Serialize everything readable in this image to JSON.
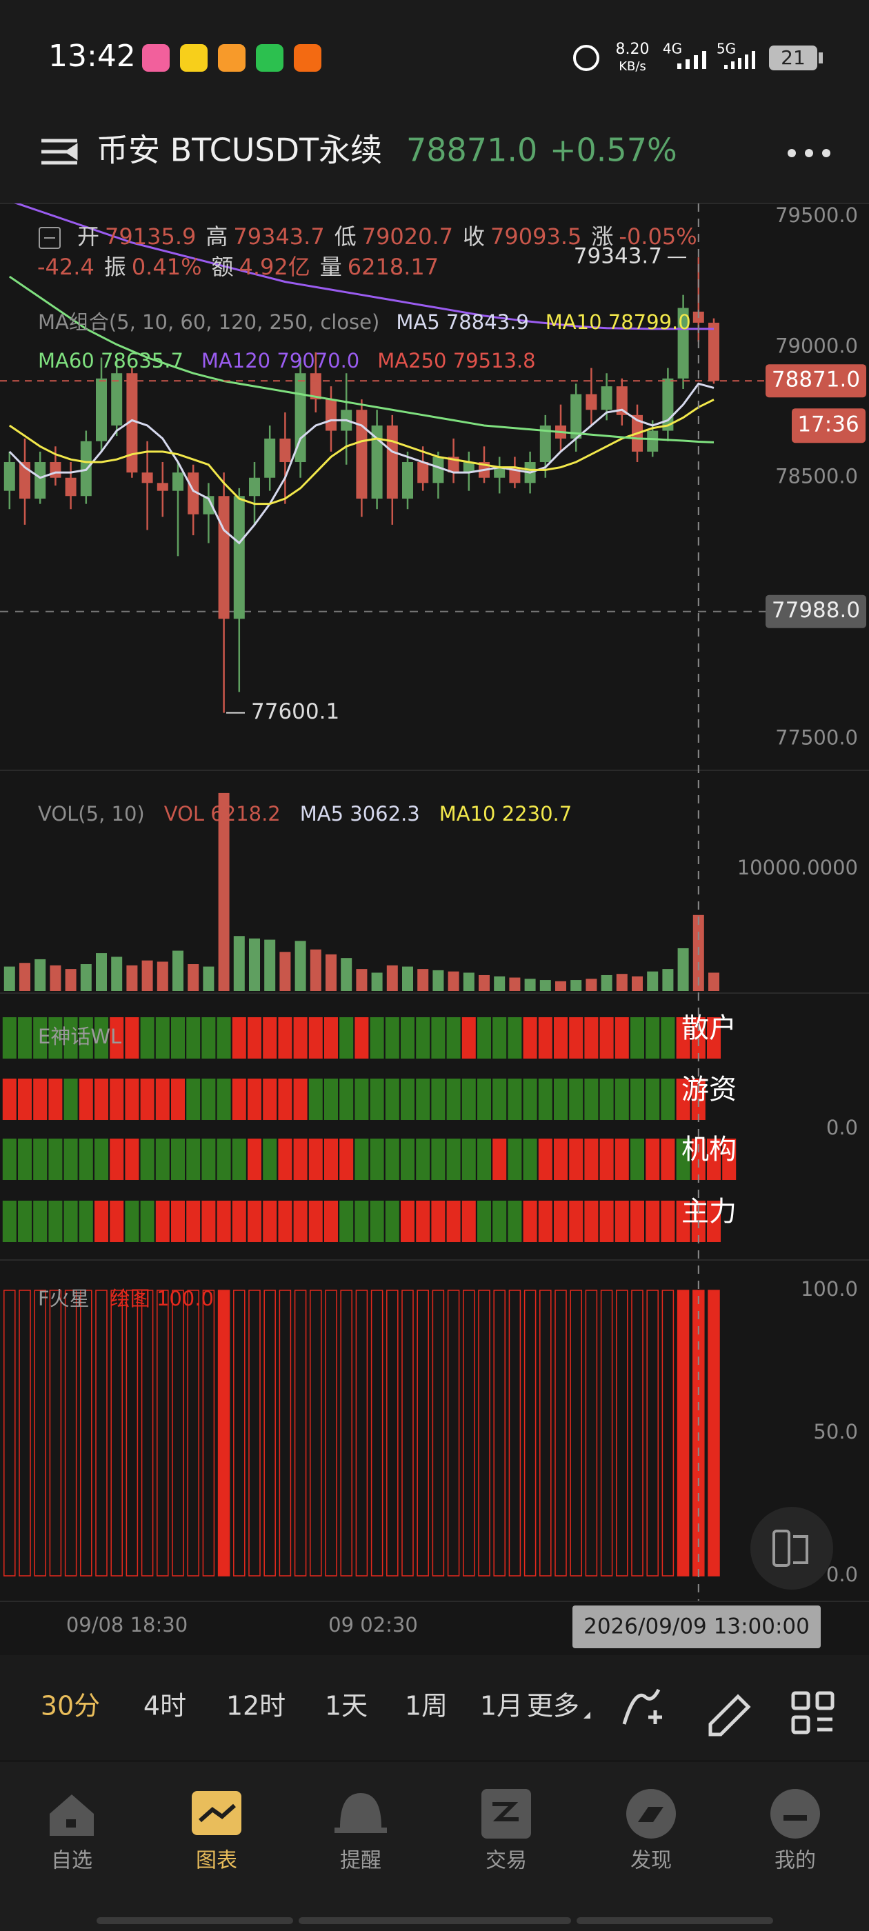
{
  "status_bar": {
    "time": "13:42",
    "net_speed": "8.20",
    "net_unit": "KB/s",
    "sim1": "4G",
    "sim2": "5G",
    "battery": "21"
  },
  "header": {
    "title": "币安 BTCUSDT永续",
    "price": "78871.0",
    "change": "+0.57%"
  },
  "info": {
    "open_label": "开",
    "open": "79135.9",
    "high_label": "高",
    "high": "79343.7",
    "low_label": "低",
    "low": "79020.7",
    "close_label": "收",
    "close": "79093.5",
    "change_label": "涨",
    "change_pct": "-0.05%",
    "change": "-42.4",
    "amplitude_label": "振",
    "amplitude": "0.41%",
    "amount_label": "额",
    "amount": "4.92亿",
    "volume_label": "量",
    "volume": "6218.17"
  },
  "ma_legend": {
    "title": "MA组合(5, 10, 60, 120, 250, close)",
    "ma5": "MA5 78843.9",
    "ma10": "MA10 78799.0",
    "ma60": "MA60 78635.7",
    "ma120": "MA120 79070.0",
    "ma250": "MA250 79513.8"
  },
  "chart_data": {
    "type": "candlestick",
    "up_color": "#5f9f60",
    "down_color": "#c9574b",
    "ylim": [
      77380,
      79550
    ],
    "yticks": [
      {
        "value": 79500,
        "label": "79500.0"
      },
      {
        "value": 79000,
        "label": "79000.0"
      },
      {
        "value": 78500,
        "label": "78500.0"
      },
      {
        "value": 77500,
        "label": "77500.0"
      }
    ],
    "candles": [
      [
        78450,
        78600,
        78380,
        78560
      ],
      [
        78560,
        78650,
        78320,
        78420
      ],
      [
        78420,
        78600,
        78400,
        78560
      ],
      [
        78560,
        78620,
        78470,
        78500
      ],
      [
        78500,
        78560,
        78380,
        78430
      ],
      [
        78430,
        78680,
        78400,
        78640
      ],
      [
        78640,
        78960,
        78600,
        78880
      ],
      [
        78700,
        78960,
        78660,
        78900
      ],
      [
        78900,
        78920,
        78500,
        78520
      ],
      [
        78520,
        78640,
        78300,
        78480
      ],
      [
        78480,
        78560,
        78350,
        78450
      ],
      [
        78450,
        78560,
        78200,
        78520
      ],
      [
        78520,
        78550,
        78280,
        78360
      ],
      [
        78360,
        78480,
        78250,
        78430
      ],
      [
        78430,
        78520,
        77600.1,
        77960
      ],
      [
        77960,
        78460,
        77680,
        78430
      ],
      [
        78430,
        78560,
        78320,
        78500
      ],
      [
        78500,
        78700,
        78450,
        78650
      ],
      [
        78650,
        78750,
        78400,
        78560
      ],
      [
        78560,
        78960,
        78500,
        78900
      ],
      [
        78900,
        78980,
        78750,
        78800
      ],
      [
        78800,
        78850,
        78600,
        78680
      ],
      [
        78680,
        78900,
        78550,
        78760
      ],
      [
        78760,
        78800,
        78350,
        78420
      ],
      [
        78420,
        78760,
        78380,
        78700
      ],
      [
        78700,
        78740,
        78320,
        78420
      ],
      [
        78420,
        78600,
        78380,
        78560
      ],
      [
        78560,
        78620,
        78450,
        78480
      ],
      [
        78480,
        78600,
        78420,
        78580
      ],
      [
        78580,
        78650,
        78480,
        78520
      ],
      [
        78520,
        78600,
        78450,
        78560
      ],
      [
        78560,
        78620,
        78480,
        78500
      ],
      [
        78500,
        78580,
        78440,
        78540
      ],
      [
        78540,
        78580,
        78460,
        78480
      ],
      [
        78480,
        78600,
        78440,
        78560
      ],
      [
        78560,
        78740,
        78500,
        78700
      ],
      [
        78700,
        78780,
        78600,
        78650
      ],
      [
        78650,
        78860,
        78600,
        78820
      ],
      [
        78820,
        78920,
        78700,
        78760
      ],
      [
        78760,
        78900,
        78720,
        78850
      ],
      [
        78850,
        78880,
        78700,
        78740
      ],
      [
        78740,
        78780,
        78560,
        78600
      ],
      [
        78600,
        78720,
        78580,
        78680
      ],
      [
        78680,
        78920,
        78640,
        78880
      ],
      [
        78880,
        79200,
        78840,
        79150
      ],
      [
        79135.9,
        79343.7,
        79020.7,
        79093.5
      ],
      [
        79093.5,
        79110,
        78860,
        78871.0
      ]
    ],
    "lines": [
      {
        "name": "MA5",
        "color": "#d6d9ee",
        "values": [
          78600,
          78540,
          78500,
          78520,
          78520,
          78530,
          78600,
          78680,
          78720,
          78700,
          78650,
          78560,
          78450,
          78420,
          78300,
          78250,
          78320,
          78400,
          78500,
          78650,
          78700,
          78720,
          78720,
          78700,
          78650,
          78600,
          78580,
          78560,
          78540,
          78520,
          78520,
          78530,
          78540,
          78530,
          78520,
          78540,
          78600,
          78650,
          78700,
          78750,
          78760,
          78720,
          78700,
          78720,
          78780,
          78860,
          78843.9
        ]
      },
      {
        "name": "MA10",
        "color": "#f2e84b",
        "values": [
          78700,
          78660,
          78620,
          78590,
          78570,
          78560,
          78560,
          78570,
          78590,
          78600,
          78600,
          78590,
          78570,
          78550,
          78480,
          78420,
          78400,
          78400,
          78420,
          78460,
          78520,
          78580,
          78620,
          78640,
          78650,
          78640,
          78620,
          78600,
          78580,
          78570,
          78560,
          78550,
          78540,
          78540,
          78530,
          78530,
          78540,
          78560,
          78590,
          78620,
          78650,
          78670,
          78690,
          78700,
          78730,
          78770,
          78799.0
        ]
      },
      {
        "name": "MA60",
        "color": "#7fe07f",
        "values": [
          79270,
          79230,
          79190,
          79150,
          79110,
          79070,
          79040,
          79010,
          78985,
          78960,
          78940,
          78920,
          78900,
          78885,
          78870,
          78860,
          78850,
          78840,
          78830,
          78820,
          78810,
          78800,
          78790,
          78780,
          78770,
          78760,
          78750,
          78740,
          78730,
          78720,
          78710,
          78700,
          78695,
          78690,
          78685,
          78680,
          78675,
          78670,
          78665,
          78660,
          78655,
          78650,
          78648,
          78645,
          78642,
          78638,
          78635.7
        ]
      },
      {
        "name": "MA120",
        "color": "#9a5cf0",
        "values": [
          79560,
          79540,
          79520,
          79500,
          79480,
          79460,
          79440,
          79420,
          79400,
          79385,
          79370,
          79355,
          79340,
          79325,
          79310,
          79295,
          79280,
          79265,
          79250,
          79240,
          79230,
          79220,
          79210,
          79200,
          79190,
          79180,
          79170,
          79160,
          79150,
          79140,
          79130,
          79120,
          79112,
          79105,
          79098,
          79092,
          79086,
          79080,
          79076,
          79073,
          79072,
          79071,
          79070,
          79070,
          79070,
          79070,
          79070.0
        ]
      }
    ],
    "price_line": {
      "value": 78871.0,
      "label": "78871.0"
    },
    "countdown": "17:36",
    "crosshair_price": {
      "value": 77988.0,
      "label": "77988.0"
    },
    "high_annotation": {
      "value": 79343.7,
      "label": "79343.7"
    },
    "low_annotation": {
      "value": 77600.1,
      "label": "77600.1"
    },
    "volume": {
      "legend": {
        "title": "VOL(5, 10)",
        "vol": "VOL 6218.2",
        "ma5": "MA5 3062.3",
        "ma10": "MA10 2230.7"
      },
      "ylim": [
        0,
        18000
      ],
      "yticks": [
        {
          "value": 10000,
          "label": "10000.0000"
        }
      ],
      "values": [
        2000,
        2300,
        2600,
        2100,
        1800,
        2200,
        3100,
        2800,
        2100,
        2500,
        2400,
        3300,
        2200,
        2000,
        16200,
        4500,
        4300,
        4200,
        3200,
        4100,
        3400,
        3000,
        2700,
        1800,
        1500,
        2100,
        2000,
        1800,
        1700,
        1600,
        1500,
        1300,
        1200,
        1100,
        1000,
        900,
        800,
        900,
        1000,
        1300,
        1400,
        1200,
        1600,
        1800,
        3500,
        6218.17,
        1500
      ]
    },
    "signals": {
      "title": "E神话WL",
      "axis_label": "0.0",
      "green": "#2f7a1f",
      "red": "#e4291d",
      "rows": [
        {
          "label": "散户",
          "states": "gggggggrrggggggrrrrrrrgrggggggrgggrrrrrrrgggrrr"
        },
        {
          "label": "游资",
          "states": "rrrrgrrrrrrrgggrrrrrggggggggggggggggggggggggrr"
        },
        {
          "label": "机构",
          "states": "gggggggrrgggggggrgrrrrrgggggggggrggrrrrrrgrrgrrr"
        },
        {
          "label": "主力",
          "states": "ggggggrrggrrrrrrrrrrrrggggrrrrrgggrrrrrrrrrrrrr"
        }
      ]
    },
    "fire": {
      "title": "F火星",
      "plot": "绘图 100.0",
      "color": "#e4291d",
      "ylim": [
        0,
        100
      ],
      "yticks": [
        {
          "value": 100,
          "label": "100.0"
        },
        {
          "value": 50,
          "label": "50.0"
        },
        {
          "value": 0,
          "label": "0.0"
        }
      ],
      "states": "ooooooooooooooxoooooooooooooooooooooooooooooxxx"
    },
    "time_labels": [
      "09/08 18:30",
      "09 02:30"
    ],
    "crosshair_time": "2026/09/09 13:00:00"
  },
  "periods": {
    "items": [
      "30分",
      "4时",
      "12时",
      "1天",
      "1周",
      "1月"
    ],
    "more": "更多"
  },
  "nav": [
    "自选",
    "图表",
    "提醒",
    "交易",
    "发现",
    "我的"
  ]
}
